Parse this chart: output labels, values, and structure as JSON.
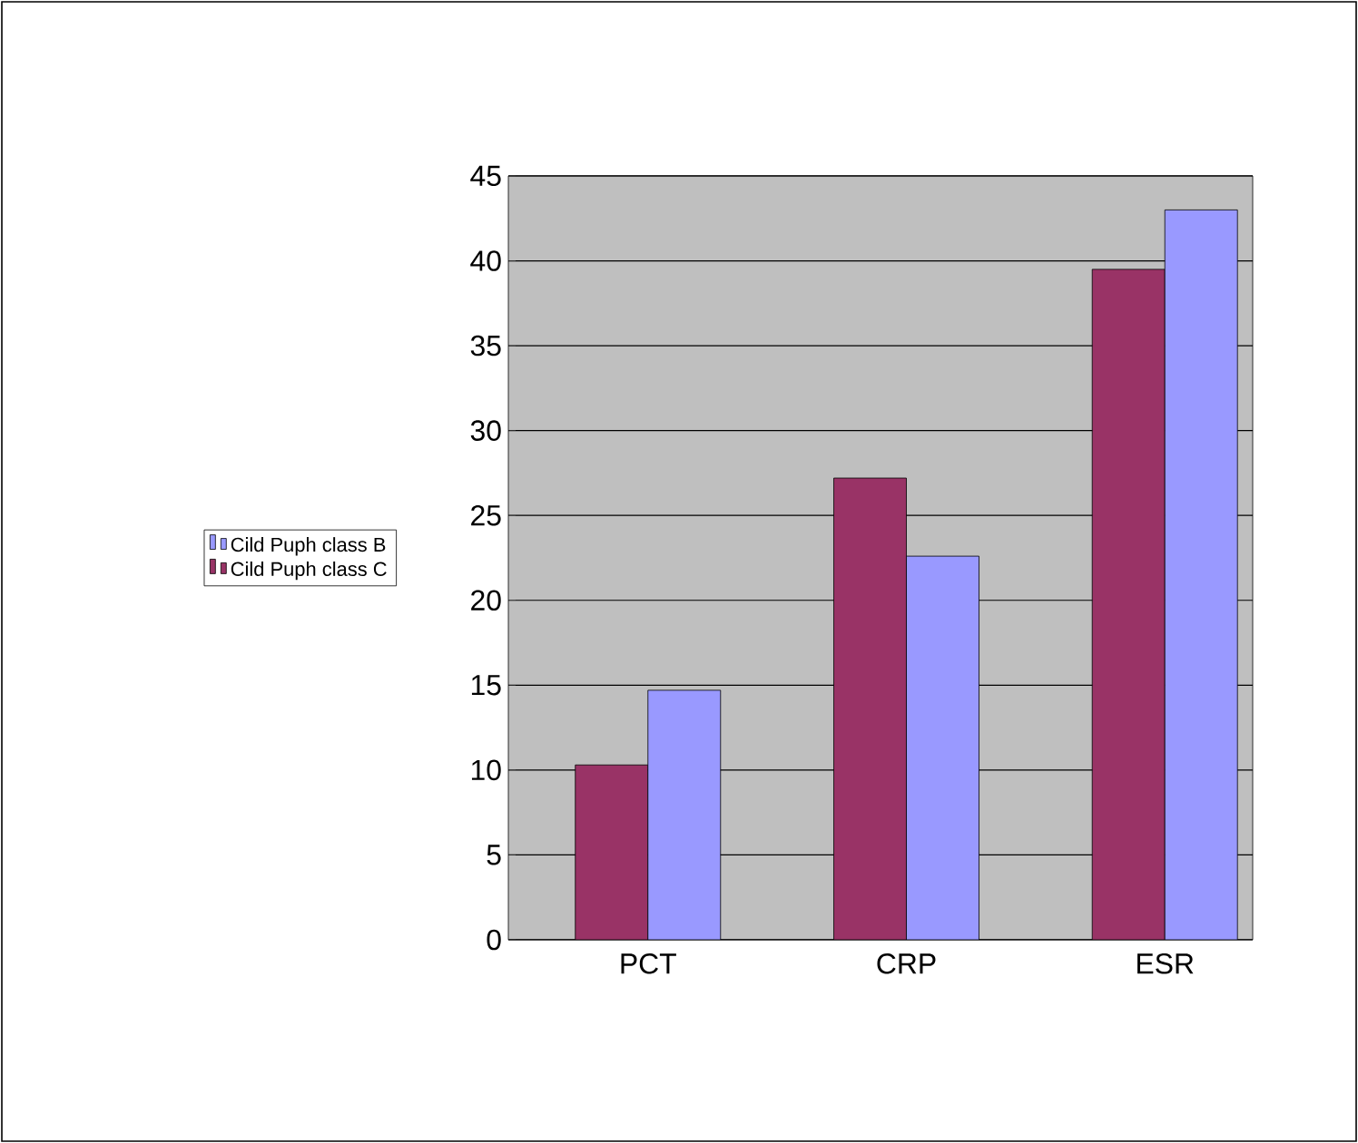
{
  "chart_data": {
    "type": "bar",
    "categories": [
      "PCT",
      "CRP",
      "ESR"
    ],
    "series": [
      {
        "name": "Cild Puph class C",
        "color": "#993366",
        "values": [
          10.3,
          27.2,
          39.5
        ]
      },
      {
        "name": "Cild Puph class B",
        "color": "#9999ff",
        "values": [
          14.7,
          22.6,
          43.0
        ]
      }
    ],
    "ylim": [
      0,
      45
    ],
    "yticks": [
      0,
      5,
      10,
      15,
      20,
      25,
      30,
      35,
      40,
      45
    ],
    "grid": "y",
    "legend": "left"
  }
}
